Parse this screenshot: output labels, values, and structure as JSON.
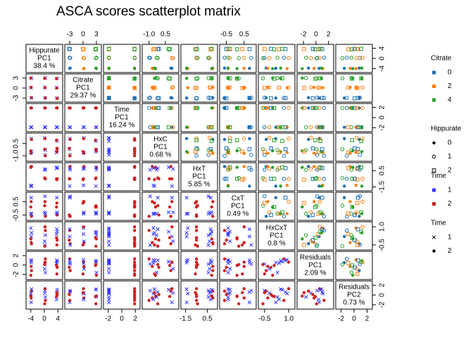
{
  "chart_data": {
    "type": "scatter-matrix",
    "title": "ASCA scores scatterplot matrix",
    "variables": [
      {
        "name": "Hippurate",
        "pc": "PC1",
        "explained": "38.4 %",
        "lim": [
          -5,
          5
        ],
        "ticks": [
          -4,
          0,
          4
        ],
        "values": [
          -3.9,
          -3.8,
          -4.0,
          -3.9,
          -3.8,
          -4.0,
          0.2,
          0.3,
          0.1,
          0.2,
          0.3,
          0.1,
          3.7,
          3.8,
          3.6,
          3.7,
          3.8,
          3.6
        ]
      },
      {
        "name": "Citrate",
        "pc": "PC1",
        "explained": "29.37 %",
        "lim": [
          -3.8,
          3.8
        ],
        "ticks": [
          -3,
          0,
          3
        ],
        "values": [
          -3.0,
          -2.9,
          0.1,
          0.2,
          2.9,
          3.0,
          -2.9,
          -3.0,
          0.2,
          0.1,
          3.0,
          2.9,
          -3.0,
          -3.1,
          0.1,
          0.0,
          2.9,
          2.8
        ]
      },
      {
        "name": "Time",
        "pc": "PC1",
        "explained": "16.24 %",
        "lim": [
          -2.5,
          2.5
        ],
        "ticks": [
          -2,
          0,
          2
        ],
        "values": [
          -1.9,
          1.9,
          -1.9,
          1.9,
          -1.9,
          1.9,
          -1.9,
          1.9,
          -1.9,
          1.9,
          -1.9,
          1.9,
          -1.9,
          1.9,
          -1.9,
          1.9,
          -1.9,
          1.9
        ]
      },
      {
        "name": "HxC",
        "pc": "PC1",
        "explained": "0.68 %",
        "lim": [
          -1.5,
          1.6
        ],
        "ticks": [
          {
            "value": -1,
            "label": "-1.0"
          },
          0.5
        ],
        "values": [
          1.1,
          1.0,
          -0.6,
          -0.7,
          -0.5,
          -0.4,
          -0.9,
          -1.0,
          1.2,
          1.1,
          -0.3,
          -0.2,
          -0.2,
          -0.1,
          -0.6,
          -0.5,
          0.8,
          0.9
        ]
      },
      {
        "name": "HxT",
        "pc": "PC1",
        "explained": "5.85 %",
        "lim": [
          -1.8,
          1.3
        ],
        "ticks": [
          -1.5,
          0.5
        ],
        "values": [
          -1.4,
          1.0,
          -1.3,
          1.0,
          -1.4,
          0.9,
          0.6,
          -0.5,
          0.7,
          -0.5,
          0.6,
          -0.4,
          0.8,
          -0.5,
          0.8,
          -0.6,
          0.9,
          -0.5
        ]
      },
      {
        "name": "CxT",
        "pc": "PC1",
        "explained": "0.49 %",
        "lim": [
          -0.8,
          1.1
        ],
        "ticks": [
          -0.5,
          0.5
        ],
        "values": [
          0.8,
          -0.6,
          -0.4,
          0.5,
          -0.4,
          0.1,
          0.9,
          -0.6,
          -0.3,
          0.5,
          -0.4,
          0.2,
          0.8,
          -0.5,
          -0.4,
          0.4,
          -0.3,
          0.1
        ]
      },
      {
        "name": "HxCxT",
        "pc": "PC1",
        "explained": "0.8 %",
        "lim": [
          -0.8,
          1.3
        ],
        "ticks": [
          -0.5,
          {
            "value": 1,
            "label": "1.0"
          }
        ],
        "values": [
          0.2,
          -0.4,
          0.9,
          -0.3,
          0.5,
          0.0,
          -0.5,
          0.7,
          -0.2,
          1.0,
          0.3,
          -0.6,
          0.8,
          -0.1,
          0.4,
          -0.5,
          0.6,
          0.1
        ]
      },
      {
        "name": "Residuals",
        "pc": "PC1",
        "explained": "2.09 %",
        "lim": [
          -2.8,
          2.6
        ],
        "ticks": [
          -2,
          0,
          2
        ],
        "values": [
          0.5,
          -1.2,
          1.1,
          -0.3,
          0.9,
          -2.2,
          0.2,
          1.3,
          -0.8,
          0.6,
          -1.6,
          0.1,
          1.0,
          -0.5,
          0.4,
          -1.9,
          0.7,
          -0.1
        ]
      },
      {
        "name": "Residuals",
        "pc": "PC2",
        "explained": "0.73 %",
        "lim": [
          -2.6,
          2.6
        ],
        "ticks": [
          -2,
          0,
          2
        ],
        "values": [
          -1.5,
          0.8,
          0.3,
          -0.6,
          1.2,
          -0.2,
          0.9,
          -1.1,
          0.4,
          1.3,
          -0.4,
          -1.8,
          0.6,
          0.1,
          -0.9,
          0.5,
          1.1,
          -0.3
        ]
      }
    ],
    "design": {
      "hippurate": [
        0,
        0,
        0,
        0,
        0,
        0,
        1,
        1,
        1,
        1,
        1,
        1,
        2,
        2,
        2,
        2,
        2,
        2
      ],
      "citrate": [
        0,
        0,
        2,
        2,
        4,
        4,
        0,
        0,
        2,
        2,
        4,
        4,
        0,
        0,
        2,
        2,
        4,
        4
      ],
      "time": [
        1,
        2,
        1,
        2,
        1,
        2,
        1,
        2,
        1,
        2,
        1,
        2,
        1,
        2,
        1,
        2,
        1,
        2
      ]
    },
    "legends": [
      {
        "title": "Citrate",
        "items": [
          {
            "label": "0",
            "color": "#1f6fb4"
          },
          {
            "label": "2",
            "color": "#ff7f0e"
          },
          {
            "label": "4",
            "color": "#2ca02c"
          }
        ]
      },
      {
        "title": "Hippurate",
        "items": [
          {
            "label": "0",
            "shape": "dot"
          },
          {
            "label": "1",
            "shape": "circle"
          },
          {
            "label": "2",
            "shape": "square"
          }
        ]
      },
      {
        "title": "Time",
        "items": [
          {
            "label": "1",
            "color": "#3333ff"
          },
          {
            "label": "2",
            "color": "#cc2222"
          }
        ]
      },
      {
        "title": "Time",
        "items": [
          {
            "label": "1",
            "shape": "cross"
          },
          {
            "label": "2",
            "shape": "dot"
          }
        ]
      }
    ]
  }
}
